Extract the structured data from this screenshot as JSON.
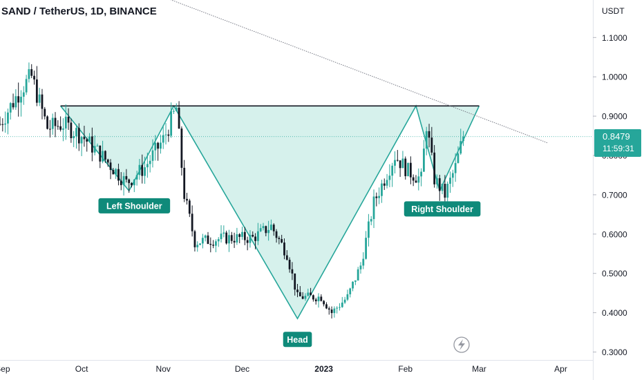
{
  "chart_data": {
    "type": "candlestick",
    "title": "SAND / TetherUS, 1D, BINANCE",
    "currency": "USDT",
    "y_ticks": [
      "1.1000",
      "1.0000",
      "0.9000",
      "0.8000",
      "0.7000",
      "0.6000",
      "0.5000",
      "0.4000",
      "0.3000"
    ],
    "ylim": [
      0.3,
      1.18
    ],
    "x_ticks": [
      {
        "label": "Sep",
        "date": "2022-09-01"
      },
      {
        "label": "Oct",
        "date": "2022-10-01"
      },
      {
        "label": "Nov",
        "date": "2022-11-01"
      },
      {
        "label": "Dec",
        "date": "2022-12-01"
      },
      {
        "label": "2023",
        "date": "2023-01-01"
      },
      {
        "label": "Feb",
        "date": "2023-02-01"
      },
      {
        "label": "Mar",
        "date": "2023-03-01"
      },
      {
        "label": "Apr",
        "date": "2023-04-01"
      }
    ],
    "last_price": "0.8479",
    "countdown": "11:59:31",
    "neckline_price": 0.926,
    "trendline": [
      {
        "date": "2022-09-22",
        "price": 1.305
      },
      {
        "date": "2023-03-27",
        "price": 0.832
      }
    ],
    "pattern": {
      "name": "Inverse Head and Shoulders",
      "points": [
        {
          "date": "2022-09-23",
          "price": 0.926
        },
        {
          "date": "2022-10-19",
          "price": 0.71
        },
        {
          "date": "2022-11-05",
          "price": 0.926
        },
        {
          "date": "2022-12-22",
          "price": 0.385
        },
        {
          "date": "2023-02-05",
          "price": 0.926
        },
        {
          "date": "2023-02-14",
          "price": 0.71
        },
        {
          "date": "2023-03-01",
          "price": 0.926
        }
      ]
    },
    "annotations": [
      {
        "text": "Left Shoulder",
        "date": "2022-10-21",
        "price": 0.672
      },
      {
        "text": "Head",
        "date": "2022-12-22",
        "price": 0.332
      },
      {
        "text": "Right Shoulder",
        "date": "2023-02-15",
        "price": 0.664
      }
    ],
    "candles": []
  },
  "colors": {
    "up": "#26a69a",
    "down": "#131722",
    "pattern_fill": "#d2f0ea",
    "pattern_line": "#26a69a",
    "label_bg": "#0f8a7a",
    "neckline": "#131722",
    "trendline": "#787b86",
    "axis_text": "#131722",
    "price_badge": "#26a69a"
  },
  "icons": {
    "watermark": "lightning-circle-icon"
  }
}
